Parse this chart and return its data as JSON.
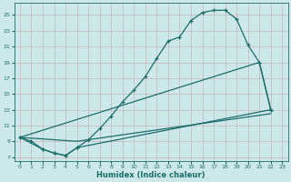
{
  "xlabel": "Humidex (Indice chaleur)",
  "bg_color": "#cde8eb",
  "grid_color": "#b0d0d4",
  "line_color": "#1a6e6a",
  "xlim": [
    -0.5,
    23.5
  ],
  "ylim": [
    6.5,
    26.5
  ],
  "xticks": [
    0,
    1,
    2,
    3,
    4,
    5,
    6,
    7,
    8,
    9,
    10,
    11,
    12,
    13,
    14,
    15,
    16,
    17,
    18,
    19,
    20,
    21,
    22,
    23
  ],
  "yticks": [
    7,
    9,
    11,
    13,
    15,
    17,
    19,
    21,
    23,
    25
  ],
  "line1_x": [
    0,
    1,
    2,
    3,
    4,
    5,
    6,
    7,
    8,
    9,
    10,
    11,
    12,
    13,
    14,
    15,
    16,
    17,
    18,
    19,
    20,
    21,
    22
  ],
  "line1_y": [
    9.5,
    9.0,
    8.0,
    7.5,
    7.2,
    8.2,
    9.2,
    10.6,
    12.2,
    14.0,
    15.5,
    17.2,
    19.5,
    21.7,
    22.2,
    24.3,
    25.3,
    25.6,
    25.6,
    24.5,
    21.2,
    19.0,
    13.0
  ],
  "line2_x": [
    0,
    2,
    3,
    4,
    5,
    22
  ],
  "line2_y": [
    9.5,
    8.0,
    7.5,
    7.2,
    8.2,
    13.0
  ],
  "line3_x": [
    0,
    5,
    22
  ],
  "line3_y": [
    9.5,
    9.0,
    12.5
  ],
  "line4_x": [
    0,
    21,
    22
  ],
  "line4_y": [
    9.5,
    19.0,
    13.0
  ]
}
